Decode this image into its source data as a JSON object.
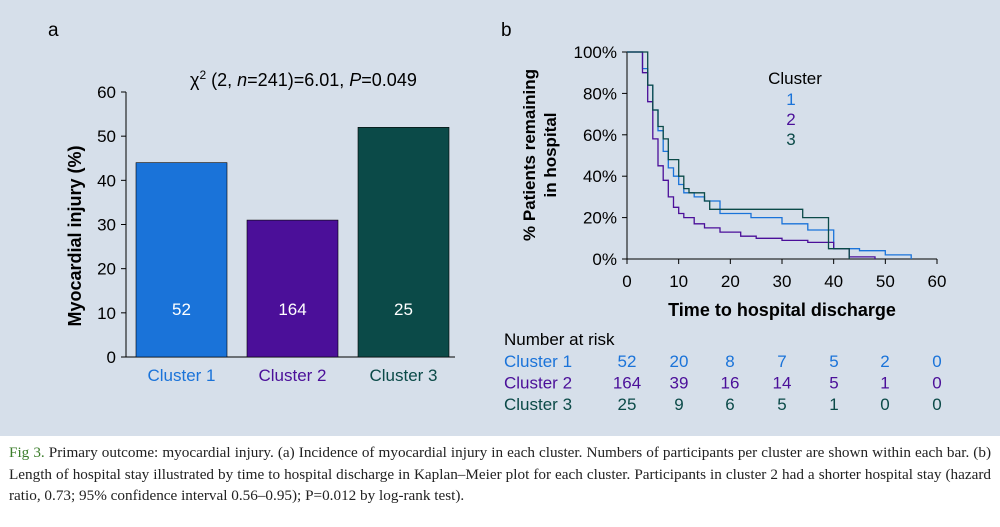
{
  "panel_a": {
    "label": "a",
    "stat_text": {
      "chi": "χ",
      "sup": "2",
      "p1": " (2, ",
      "n": "n",
      "p2": "=241)=6.01, ",
      "P": "P",
      "p3": "=0.049"
    }
  },
  "panel_b": {
    "label": "b",
    "ylabel_line1": "% Patients remaining",
    "ylabel_line2": "in hospital",
    "xlabel": "Time to hospital discharge",
    "legend_title": "Cluster",
    "legend_items": [
      "1",
      "2",
      "3"
    ]
  },
  "risk_table": {
    "title": "Number at risk",
    "rows": [
      {
        "label": "Cluster 1",
        "values": [
          "52",
          "20",
          "8",
          "7",
          "5",
          "2",
          "0"
        ]
      },
      {
        "label": "Cluster 2",
        "values": [
          "164",
          "39",
          "16",
          "14",
          "5",
          "1",
          "0"
        ]
      },
      {
        "label": "Cluster 3",
        "values": [
          "25",
          "9",
          "6",
          "5",
          "1",
          "0",
          "0"
        ]
      }
    ]
  },
  "colors": {
    "cluster1": "#1a73d9",
    "cluster2": "#4b0f99",
    "cluster3": "#0b4a48",
    "background": "#d6dfea"
  },
  "caption": {
    "label": "Fig 3.",
    "text": " Primary outcome: myocardial injury. (a) Incidence of myocardial injury in each cluster. Numbers of participants per cluster are shown within each bar. (b) Length of hospital stay illustrated by time to hospital discharge in Kaplan–Meier plot for each cluster. Participants in cluster 2 had a shorter hospital stay (hazard ratio, 0.73; 95% confidence interval 0.56–0.95); P=0.012 by log-rank test)."
  },
  "chart_data": [
    {
      "type": "bar",
      "categories": [
        "Cluster 1",
        "Cluster 2",
        "Cluster 3"
      ],
      "values": [
        44,
        31,
        52
      ],
      "bar_labels": [
        "52",
        "164",
        "25"
      ],
      "ylabel": "Myocardial injury (%)",
      "ylim": [
        0,
        60
      ],
      "yticks": [
        0,
        10,
        20,
        30,
        40,
        50,
        60
      ],
      "grid": false
    },
    {
      "type": "line",
      "step": true,
      "xlabel": "Time to hospital discharge",
      "ylabel": "% Patients remaining in hospital",
      "xlim": [
        0,
        60
      ],
      "ylim": [
        0,
        100
      ],
      "xticks": [
        0,
        10,
        20,
        30,
        40,
        50,
        60
      ],
      "yticks": [
        "0%",
        "20%",
        "40%",
        "60%",
        "80%",
        "100%"
      ],
      "legend_position": "top-right",
      "grid": false,
      "series": [
        {
          "name": "1",
          "points": [
            [
              0,
              100
            ],
            [
              3,
              100
            ],
            [
              3,
              92
            ],
            [
              4,
              92
            ],
            [
              4,
              84
            ],
            [
              5,
              84
            ],
            [
              5,
              72
            ],
            [
              6,
              72
            ],
            [
              6,
              62
            ],
            [
              7,
              62
            ],
            [
              7,
              52
            ],
            [
              8,
              52
            ],
            [
              8,
              44
            ],
            [
              9,
              44
            ],
            [
              9,
              40
            ],
            [
              10,
              40
            ],
            [
              10,
              36
            ],
            [
              11,
              36
            ],
            [
              11,
              32
            ],
            [
              13,
              32
            ],
            [
              13,
              30
            ],
            [
              15,
              30
            ],
            [
              15,
              28
            ],
            [
              18,
              28
            ],
            [
              18,
              22
            ],
            [
              24,
              22
            ],
            [
              24,
              20
            ],
            [
              30,
              20
            ],
            [
              30,
              17
            ],
            [
              35,
              17
            ],
            [
              35,
              14
            ],
            [
              40,
              14
            ],
            [
              40,
              5
            ],
            [
              45,
              5
            ],
            [
              45,
              4
            ],
            [
              50,
              4
            ],
            [
              50,
              2
            ],
            [
              55,
              2
            ],
            [
              55,
              0
            ]
          ]
        },
        {
          "name": "2",
          "points": [
            [
              0,
              100
            ],
            [
              3,
              100
            ],
            [
              3,
              90
            ],
            [
              4,
              90
            ],
            [
              4,
              76
            ],
            [
              5,
              76
            ],
            [
              5,
              58
            ],
            [
              6,
              58
            ],
            [
              6,
              45
            ],
            [
              7,
              45
            ],
            [
              7,
              38
            ],
            [
              8,
              38
            ],
            [
              8,
              30
            ],
            [
              9,
              30
            ],
            [
              9,
              25
            ],
            [
              10,
              25
            ],
            [
              10,
              22
            ],
            [
              11,
              22
            ],
            [
              11,
              20
            ],
            [
              13,
              20
            ],
            [
              13,
              17
            ],
            [
              15,
              17
            ],
            [
              15,
              15
            ],
            [
              18,
              15
            ],
            [
              18,
              13
            ],
            [
              22,
              13
            ],
            [
              22,
              11
            ],
            [
              25,
              11
            ],
            [
              25,
              10
            ],
            [
              30,
              10
            ],
            [
              30,
              9
            ],
            [
              35,
              9
            ],
            [
              35,
              8
            ],
            [
              40,
              8
            ],
            [
              40,
              5
            ],
            [
              43,
              5
            ],
            [
              43,
              1
            ],
            [
              48,
              1
            ],
            [
              48,
              0
            ]
          ]
        },
        {
          "name": "3",
          "points": [
            [
              0,
              100
            ],
            [
              4,
              100
            ],
            [
              4,
              84
            ],
            [
              5,
              84
            ],
            [
              5,
              72
            ],
            [
              6,
              72
            ],
            [
              6,
              64
            ],
            [
              7,
              64
            ],
            [
              7,
              58
            ],
            [
              8,
              58
            ],
            [
              8,
              48
            ],
            [
              10,
              48
            ],
            [
              10,
              40
            ],
            [
              11,
              40
            ],
            [
              11,
              34
            ],
            [
              12,
              34
            ],
            [
              12,
              32
            ],
            [
              15,
              32
            ],
            [
              15,
              28
            ],
            [
              16,
              28
            ],
            [
              16,
              24
            ],
            [
              24,
              24
            ],
            [
              24,
              24
            ],
            [
              34,
              24
            ],
            [
              34,
              20
            ],
            [
              39,
              20
            ],
            [
              39,
              5
            ],
            [
              43,
              5
            ],
            [
              43,
              0
            ]
          ]
        }
      ]
    }
  ]
}
